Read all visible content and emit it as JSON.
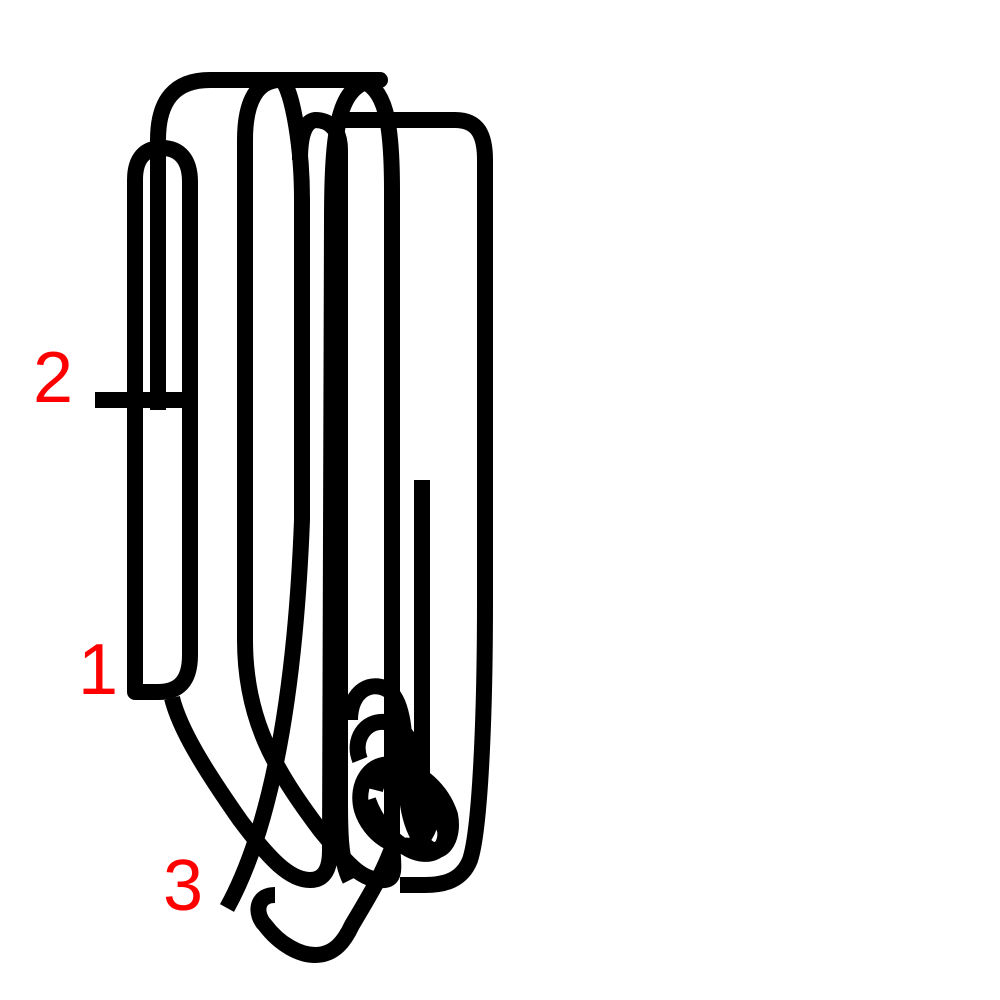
{
  "diagram": {
    "background_color": "#ffffff",
    "rope_color": "#000000",
    "label_color": "#ff0000",
    "labels": {
      "one": "1",
      "two": "2",
      "three": "3"
    }
  }
}
